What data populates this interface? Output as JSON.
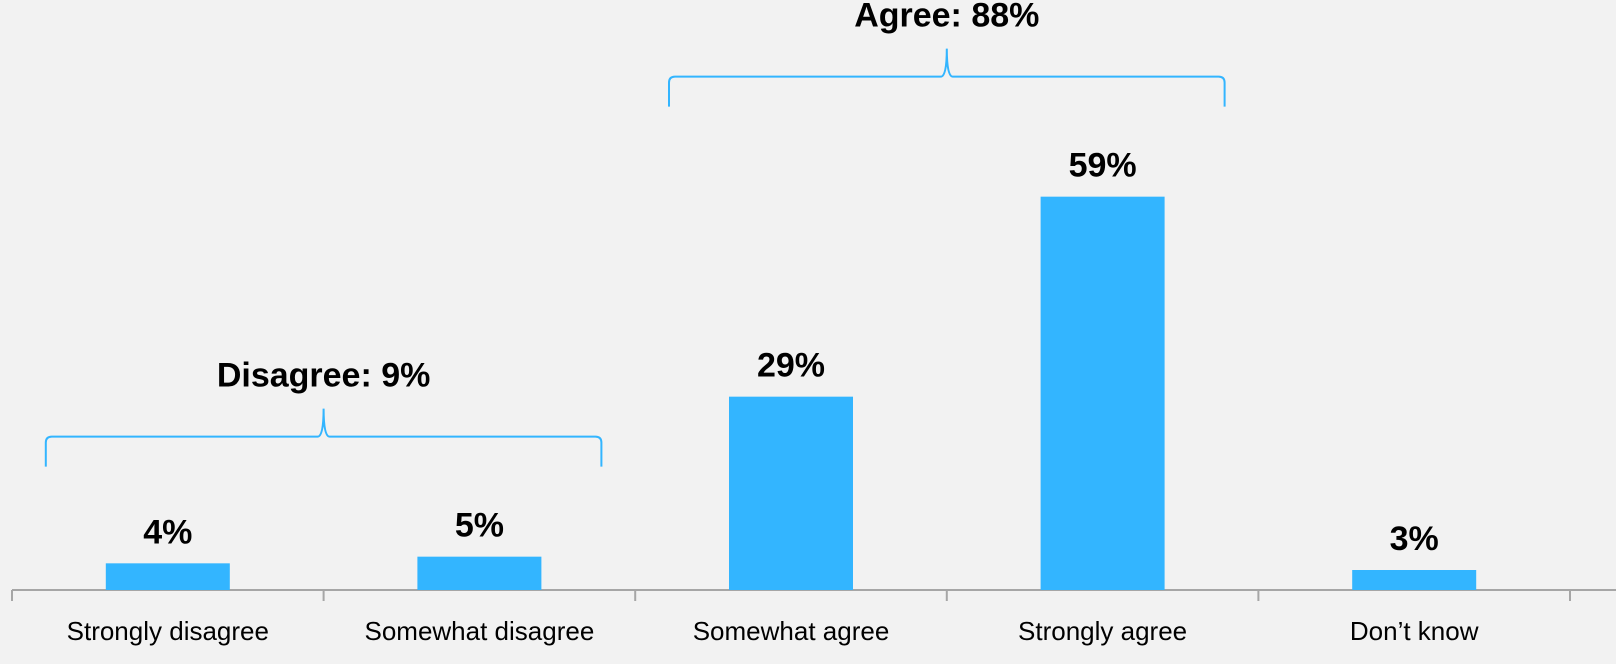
{
  "chart_data": {
    "type": "bar",
    "title": "",
    "xlabel": "",
    "ylabel": "",
    "categories": [
      "Strongly disagree",
      "Somewhat disagree",
      "Somewhat agree",
      "Strongly agree",
      "Don’t know"
    ],
    "values": [
      4,
      5,
      29,
      59,
      3
    ],
    "value_labels": [
      "4%",
      "5%",
      "29%",
      "59%",
      "3%"
    ],
    "ylim": [
      0,
      66
    ],
    "grid": false,
    "legend": "none",
    "bar_color": "#33b5ff",
    "bracket_color": "#33b5ff",
    "axis_color": "#a6a6a6",
    "groups": [
      {
        "label": "Disagree: 9%",
        "categories": [
          "Strongly disagree",
          "Somewhat disagree"
        ]
      },
      {
        "label": "Agree: 88%",
        "categories": [
          "Somewhat agree",
          "Strongly agree"
        ]
      }
    ]
  }
}
